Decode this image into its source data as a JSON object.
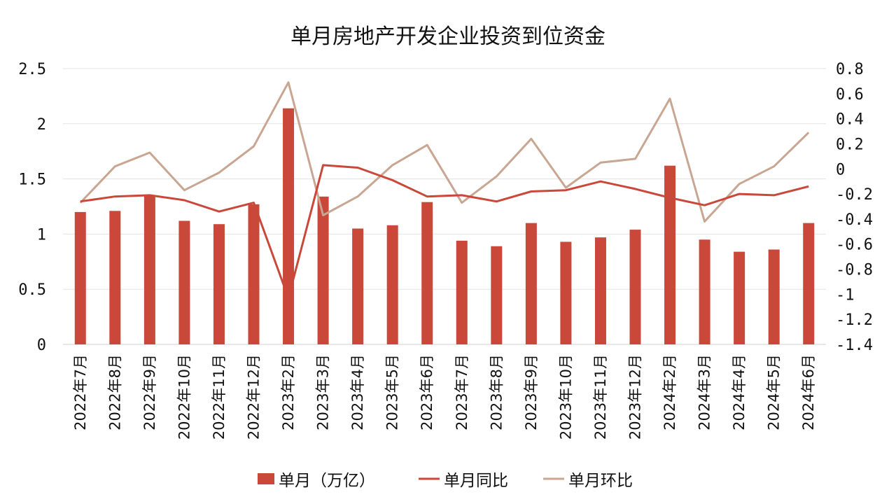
{
  "chart_data": {
    "type": "bar+line",
    "title": "单月房地产开发企业投资到位资金",
    "categories": [
      "2022年7月",
      "2022年8月",
      "2022年9月",
      "2022年10月",
      "2022年11月",
      "2022年12月",
      "2023年2月",
      "2023年3月",
      "2023年4月",
      "2023年5月",
      "2023年6月",
      "2023年7月",
      "2023年8月",
      "2023年9月",
      "2023年10月",
      "2023年11月",
      "2023年12月",
      "2024年2月",
      "2024年3月",
      "2024年4月",
      "2024年5月",
      "2024年6月"
    ],
    "series": [
      {
        "name": "单月（万亿）",
        "type": "bar",
        "axis": "left",
        "color": "#C9483A",
        "values": [
          1.2,
          1.21,
          1.35,
          1.12,
          1.09,
          1.27,
          2.14,
          1.34,
          1.05,
          1.08,
          1.29,
          0.94,
          0.89,
          1.1,
          0.93,
          0.97,
          1.04,
          1.62,
          0.95,
          0.84,
          0.86,
          1.1
        ]
      },
      {
        "name": "单月同比",
        "type": "line",
        "axis": "right",
        "color": "#C9483A",
        "values": [
          -0.26,
          -0.22,
          -0.21,
          -0.25,
          -0.34,
          -0.27,
          -1.03,
          0.03,
          0.01,
          -0.09,
          -0.22,
          -0.21,
          -0.26,
          -0.18,
          -0.17,
          -0.1,
          -0.16,
          -0.23,
          -0.29,
          -0.2,
          -0.21,
          -0.14
        ]
      },
      {
        "name": "单月环比",
        "type": "line",
        "axis": "right",
        "color": "#C8A692",
        "values": [
          -0.27,
          0.02,
          0.13,
          -0.17,
          -0.03,
          0.18,
          0.69,
          -0.37,
          -0.22,
          0.03,
          0.19,
          -0.27,
          -0.06,
          0.24,
          -0.15,
          0.05,
          0.08,
          0.56,
          -0.42,
          -0.12,
          0.02,
          0.29
        ]
      }
    ],
    "y_left": {
      "min": 0,
      "max": 2.5,
      "ticks": [
        "0",
        "0.5",
        "1",
        "1.5",
        "2",
        "2.5"
      ],
      "tick_values": [
        0,
        0.5,
        1,
        1.5,
        2,
        2.5
      ]
    },
    "y_right": {
      "min": -1.4,
      "max": 0.8,
      "ticks": [
        "-1.4",
        "-1.2",
        "-1",
        "-0.8",
        "-0.6",
        "-0.4",
        "-0.2",
        "0",
        "0.2",
        "0.4",
        "0.6",
        "0.8"
      ],
      "tick_values": [
        -1.4,
        -1.2,
        -1,
        -0.8,
        -0.6,
        -0.4,
        -0.2,
        0,
        0.2,
        0.4,
        0.6,
        0.8
      ]
    },
    "grid": "horizontal",
    "legend_position": "bottom"
  }
}
